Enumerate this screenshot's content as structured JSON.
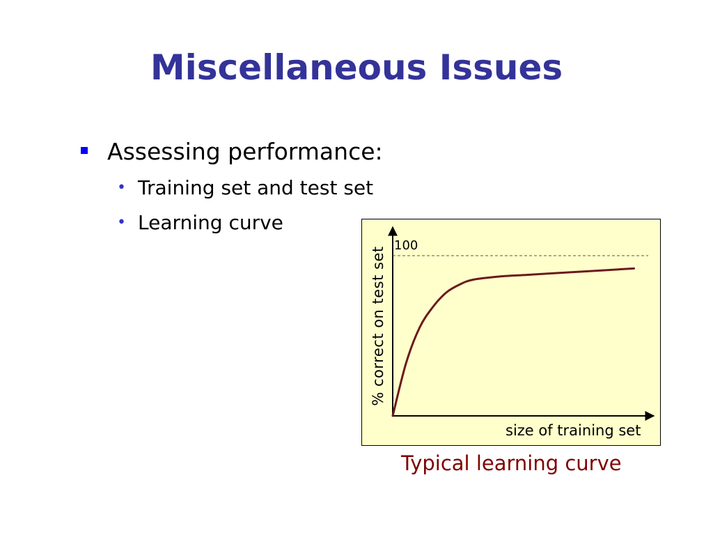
{
  "slide": {
    "title": "Miscellaneous Issues",
    "bullets": [
      {
        "text": "Assessing performance:",
        "subitems": [
          "Training set and test set",
          "Learning curve"
        ]
      }
    ],
    "caption": "Typical learning curve"
  },
  "chart_data": {
    "type": "line",
    "title": "",
    "xlabel": "size of training set",
    "ylabel": "% correct on test set",
    "y_reference": {
      "value": 100,
      "label": "100",
      "style": "dashed"
    },
    "ylim": [
      0,
      100
    ],
    "xlim": [
      0,
      10
    ],
    "series": [
      {
        "color": "#6b1a1a",
        "points": [
          [
            0,
            0
          ],
          [
            0.5,
            33
          ],
          [
            1.0,
            55
          ],
          [
            1.5,
            68
          ],
          [
            2.0,
            77
          ],
          [
            2.5,
            82
          ],
          [
            3.0,
            85
          ],
          [
            4.0,
            87
          ],
          [
            5.0,
            88
          ],
          [
            6.0,
            89
          ],
          [
            7.0,
            90
          ],
          [
            8.0,
            91
          ],
          [
            9.0,
            92
          ]
        ]
      }
    ],
    "background": "#ffffcc",
    "grid": false
  }
}
